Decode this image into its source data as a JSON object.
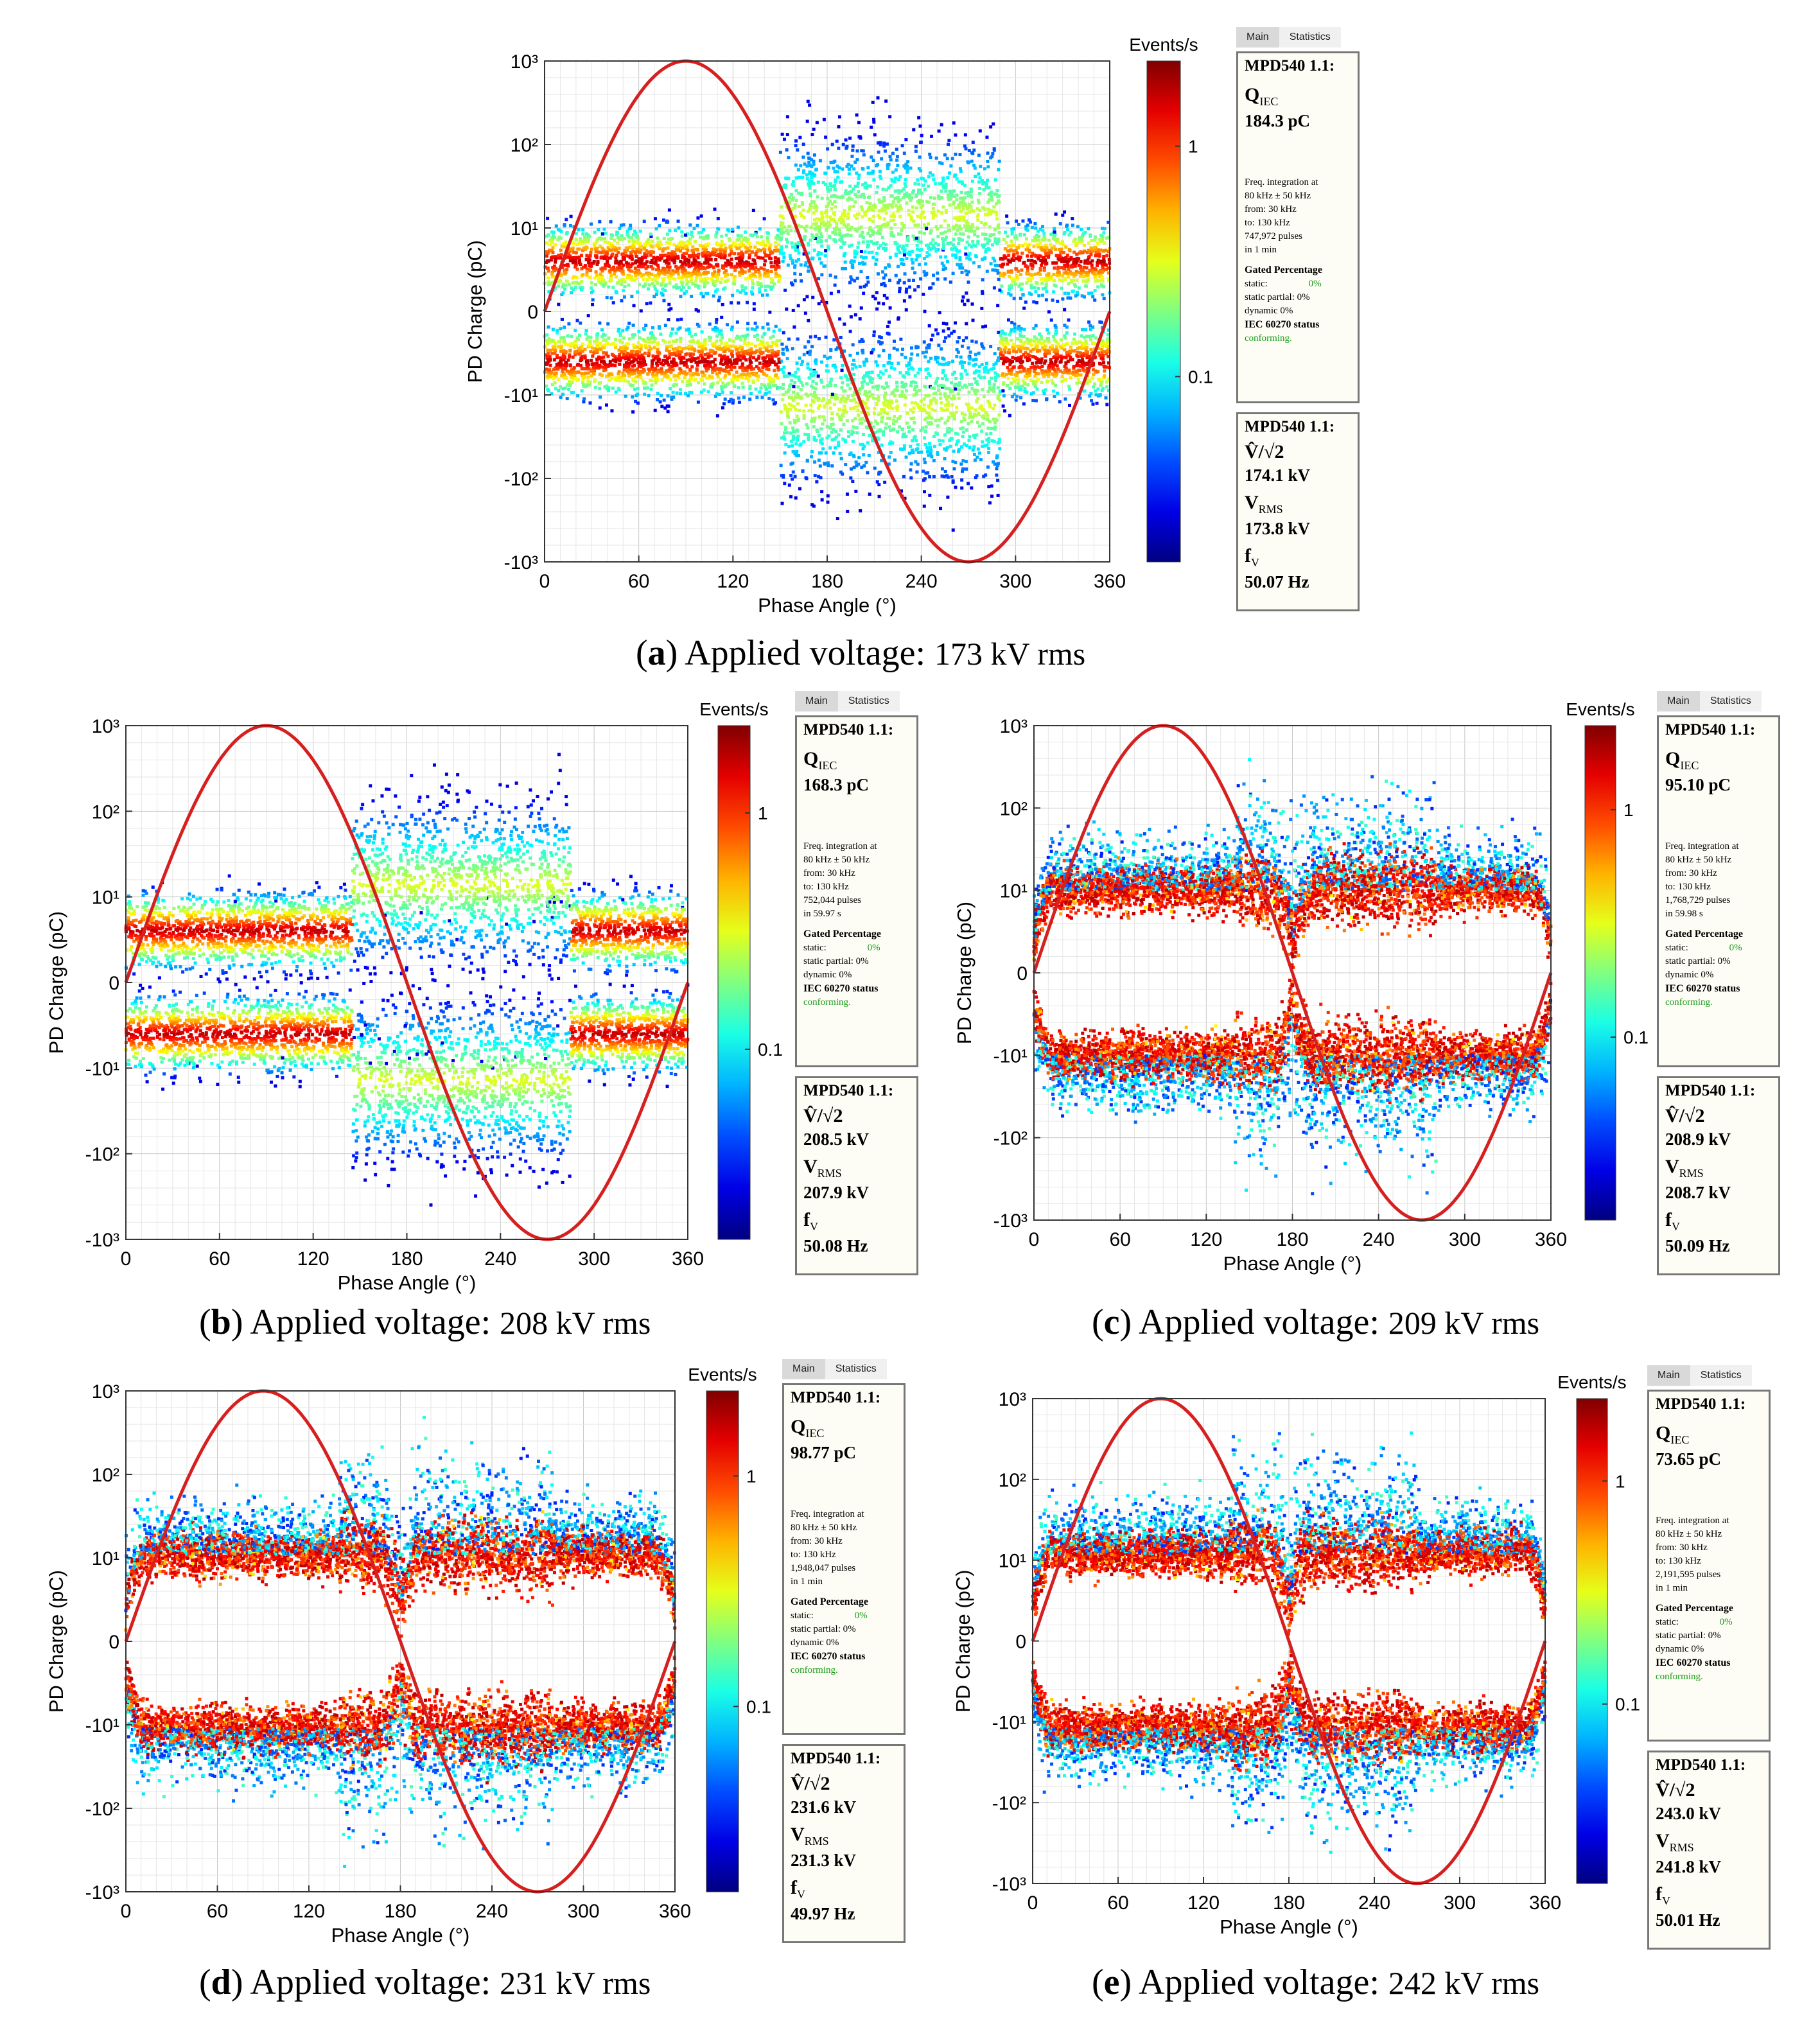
{
  "colors": {
    "sine": "#d62020",
    "box_border": "#777777",
    "green": "#1a9a1a"
  },
  "common": {
    "events_label": "Events/s",
    "cbar_ticks": [
      "1",
      "0.1"
    ],
    "tab_main": "Main",
    "tab_statistics": "Statistics",
    "device": "MPD540 1.1:",
    "q_label": "Q",
    "q_sub": "IEC",
    "freq_line1": "Freq. integration at",
    "freq_line2": "80 kHz ± 50 kHz",
    "from_line": "from:   30 kHz",
    "to_line": "to:      130 kHz",
    "gated_title": "Gated Percentage",
    "static_label": "static:",
    "static_val": "0%",
    "static_partial": "static partial:  0%",
    "dynamic": "dynamic         0%",
    "iec_status": "IEC 60270 status",
    "conforming": "conforming.",
    "vhat_label": "V̂/√2",
    "vrms_label": "V",
    "vrms_sub": "RMS",
    "f_label": "f",
    "f_sub": "V",
    "caption_prefix": "Applied voltage: ",
    "caption_unit": " kV rms"
  },
  "panels": [
    {
      "id": "a",
      "qiec": "184.3 pC",
      "pulses": "747,972 pulses",
      "duration": "in  1 min",
      "vhat": "174.1 kV",
      "vrms": "173.8 kV",
      "fv": "50.07 Hz",
      "caption_letter": "a",
      "caption_num": "173"
    },
    {
      "id": "b",
      "qiec": "168.3 pC",
      "pulses": "752,044 pulses",
      "duration": "in 59.97 s",
      "vhat": "208.5 kV",
      "vrms": "207.9 kV",
      "fv": "50.08 Hz",
      "caption_letter": "b",
      "caption_num": "208"
    },
    {
      "id": "c",
      "qiec": "95.10 pC",
      "pulses": "1,768,729 pulses",
      "duration": "in 59.98 s",
      "vhat": "208.9 kV",
      "vrms": "208.7 kV",
      "fv": "50.09 Hz",
      "caption_letter": "c",
      "caption_num": "209"
    },
    {
      "id": "d",
      "qiec": "98.77 pC",
      "pulses": "1,948,047 pulses",
      "duration": "in  1 min",
      "vhat": "231.6 kV",
      "vrms": "231.3 kV",
      "fv": "49.97 Hz",
      "caption_letter": "d",
      "caption_num": "231"
    },
    {
      "id": "e",
      "qiec": "73.65 pC",
      "pulses": "2,191,595 pulses",
      "duration": "in  1 min",
      "vhat": "243.0 kV",
      "vrms": "241.8 kV",
      "fv": "50.01 Hz",
      "caption_letter": "e",
      "caption_num": "242"
    }
  ],
  "chart_data": [
    {
      "id": "a",
      "type": "scatter",
      "title": "",
      "xlabel": "Phase Angle (°)",
      "ylabel": "PD Charge (pC)",
      "xlim": [
        0,
        360
      ],
      "ylim": [
        -1000,
        1000
      ],
      "yscale": "symlog",
      "xticks": [
        "0",
        "60",
        "120",
        "180",
        "240",
        "300",
        "360"
      ],
      "yticks": [
        "10³",
        "10²",
        "10¹",
        "0",
        "-10¹",
        "-10²",
        "-10³"
      ],
      "colorbar": {
        "label": "Events/s",
        "ticks": [
          1,
          0.1
        ]
      },
      "sine": {
        "amplitude_pC": 1000,
        "period_deg": 360
      },
      "pattern": "broad",
      "band_center_pC": 4,
      "enhanced_range_deg": [
        150,
        290
      ]
    },
    {
      "id": "b",
      "type": "scatter",
      "title": "",
      "xlabel": "Phase Angle (°)",
      "ylabel": "PD Charge (pC)",
      "xlim": [
        0,
        360
      ],
      "ylim": [
        -1000,
        1000
      ],
      "yscale": "symlog",
      "xticks": [
        "0",
        "60",
        "120",
        "180",
        "240",
        "300",
        "360"
      ],
      "yticks": [
        "10³",
        "10²",
        "10¹",
        "0",
        "-10¹",
        "-10²",
        "-10³"
      ],
      "colorbar": {
        "label": "Events/s",
        "ticks": [
          1,
          0.1
        ]
      },
      "sine": {
        "amplitude_pC": 1000,
        "period_deg": 360
      },
      "pattern": "broad",
      "band_center_pC": 4,
      "enhanced_range_deg": [
        145,
        285
      ]
    },
    {
      "id": "c",
      "type": "scatter",
      "title": "",
      "xlabel": "Phase Angle (°)",
      "ylabel": "PD Charge (pC)",
      "xlim": [
        0,
        360
      ],
      "ylim": [
        -1000,
        1000
      ],
      "yscale": "symlog",
      "xticks": [
        "0",
        "60",
        "120",
        "180",
        "240",
        "300",
        "360"
      ],
      "yticks": [
        "10³",
        "10²",
        "10¹",
        "0",
        "-10¹",
        "-10²",
        "-10³"
      ],
      "colorbar": {
        "label": "Events/s",
        "ticks": [
          1,
          0.1
        ]
      },
      "sine": {
        "amplitude_pC": 1000,
        "period_deg": 360
      },
      "pattern": "eye",
      "band_center_pC": 10,
      "enhanced_range_deg": [
        140,
        280
      ]
    },
    {
      "id": "d",
      "type": "scatter",
      "title": "",
      "xlabel": "Phase Angle (°)",
      "ylabel": "PD Charge (pC)",
      "xlim": [
        0,
        360
      ],
      "ylim": [
        -1000,
        1000
      ],
      "yscale": "symlog",
      "xticks": [
        "0",
        "60",
        "120",
        "180",
        "240",
        "300",
        "360"
      ],
      "yticks": [
        "10³",
        "10²",
        "10¹",
        "0",
        "-10¹",
        "-10²",
        "-10³"
      ],
      "colorbar": {
        "label": "Events/s",
        "ticks": [
          1,
          0.1
        ]
      },
      "sine": {
        "amplitude_pC": 1000,
        "period_deg": 360
      },
      "pattern": "eye",
      "band_center_pC": 11,
      "enhanced_range_deg": [
        140,
        280
      ]
    },
    {
      "id": "e",
      "type": "scatter",
      "title": "",
      "xlabel": "Phase Angle (°)",
      "ylabel": "PD Charge (pC)",
      "xlim": [
        0,
        360
      ],
      "ylim": [
        -1000,
        1000
      ],
      "yscale": "symlog",
      "xticks": [
        "0",
        "60",
        "120",
        "180",
        "240",
        "300",
        "360"
      ],
      "yticks": [
        "10³",
        "10²",
        "10¹",
        "0",
        "-10¹",
        "-10²",
        "-10³"
      ],
      "colorbar": {
        "label": "Events/s",
        "ticks": [
          1,
          0.1
        ]
      },
      "sine": {
        "amplitude_pC": 1000,
        "period_deg": 360
      },
      "pattern": "eye",
      "band_center_pC": 12,
      "enhanced_range_deg": [
        140,
        270
      ]
    }
  ]
}
